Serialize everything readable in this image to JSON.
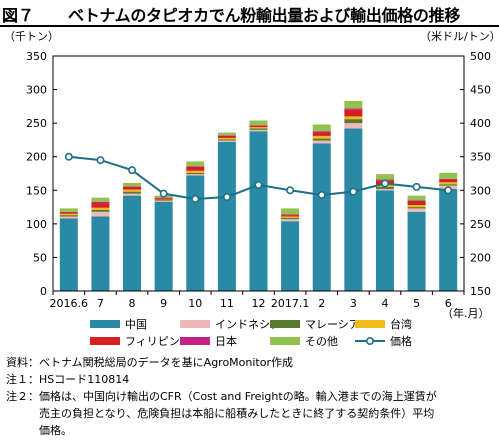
{
  "figure": {
    "label": "図７",
    "title": "ベトナムのタピオカでん粉輸出量および輸出価格の推移"
  },
  "colors": {
    "中国": "#2a8aa6",
    "インドネシア": "#f0b7b7",
    "マレーシア": "#567a2f",
    "台湾": "#f2bb1a",
    "フィリピン": "#d42020",
    "日本": "#c42282",
    "その他": "#92c24d",
    "価格": "#1f6f86"
  },
  "chart_data": {
    "type": "bar",
    "stacked": true,
    "categories": [
      "2016.6",
      "7",
      "8",
      "9",
      "10",
      "11",
      "12",
      "2017.1",
      "2",
      "3",
      "4",
      "5",
      "6"
    ],
    "left_axis": {
      "label": "（千トン）",
      "ylim": [
        0,
        350
      ],
      "ticks": [
        "0",
        "50",
        "100",
        "150",
        "200",
        "250",
        "300",
        "350"
      ]
    },
    "right_axis": {
      "label": "（米ドル/トン）",
      "ylim": [
        150,
        500
      ],
      "ticks": [
        "150",
        "200",
        "250",
        "300",
        "350",
        "400",
        "450",
        "500"
      ]
    },
    "x_unit_label": "（年.月）",
    "series": [
      {
        "name": "中国",
        "values": [
          108,
          111,
          142,
          133,
          172,
          222,
          238,
          104,
          220,
          242,
          150,
          118,
          152
        ]
      },
      {
        "name": "インドネシア",
        "values": [
          3,
          7,
          3,
          1,
          2,
          2,
          2,
          3,
          4,
          8,
          2,
          5,
          5
        ]
      },
      {
        "name": "マレーシア",
        "values": [
          2,
          3,
          3,
          1,
          2,
          2,
          2,
          2,
          3,
          6,
          3,
          2,
          2
        ]
      },
      {
        "name": "台湾",
        "values": [
          2,
          3,
          3,
          1,
          3,
          2,
          2,
          2,
          4,
          4,
          3,
          3,
          3
        ]
      },
      {
        "name": "フィリピン",
        "values": [
          2,
          7,
          4,
          2,
          6,
          3,
          2,
          2,
          5,
          10,
          7,
          6,
          4
        ]
      },
      {
        "name": "日本",
        "values": [
          1,
          2,
          1,
          1,
          1,
          1,
          1,
          1,
          2,
          2,
          1,
          1,
          1
        ]
      },
      {
        "name": "その他",
        "values": [
          5,
          6,
          5,
          3,
          7,
          4,
          7,
          9,
          10,
          11,
          8,
          7,
          9
        ]
      }
    ],
    "line_series": {
      "name": "価格",
      "axis": "right",
      "values": [
        350,
        345,
        330,
        295,
        287,
        290,
        308,
        300,
        293,
        298,
        310,
        305,
        300
      ]
    },
    "legend": {
      "placement": "bottom",
      "order": [
        "中国",
        "インドネシア",
        "マレーシア",
        "台湾",
        "フィリピン",
        "日本",
        "その他",
        "価格"
      ]
    },
    "grid": false
  },
  "notes": [
    {
      "key": "資料：",
      "lines": [
        "ベトナム関税総局のデータを基にAgroMonitor作成"
      ]
    },
    {
      "key": "注１：",
      "lines": [
        "HSコード110814"
      ]
    },
    {
      "key": "注２：",
      "lines": [
        "価格は、中国向け輸出のCFR（Cost and Freightの略。輸入港までの海上運賃が",
        "売主の負担となり、危険負担は本船に船積みしたときに終了する契約条件）平均",
        "価格。"
      ]
    }
  ]
}
